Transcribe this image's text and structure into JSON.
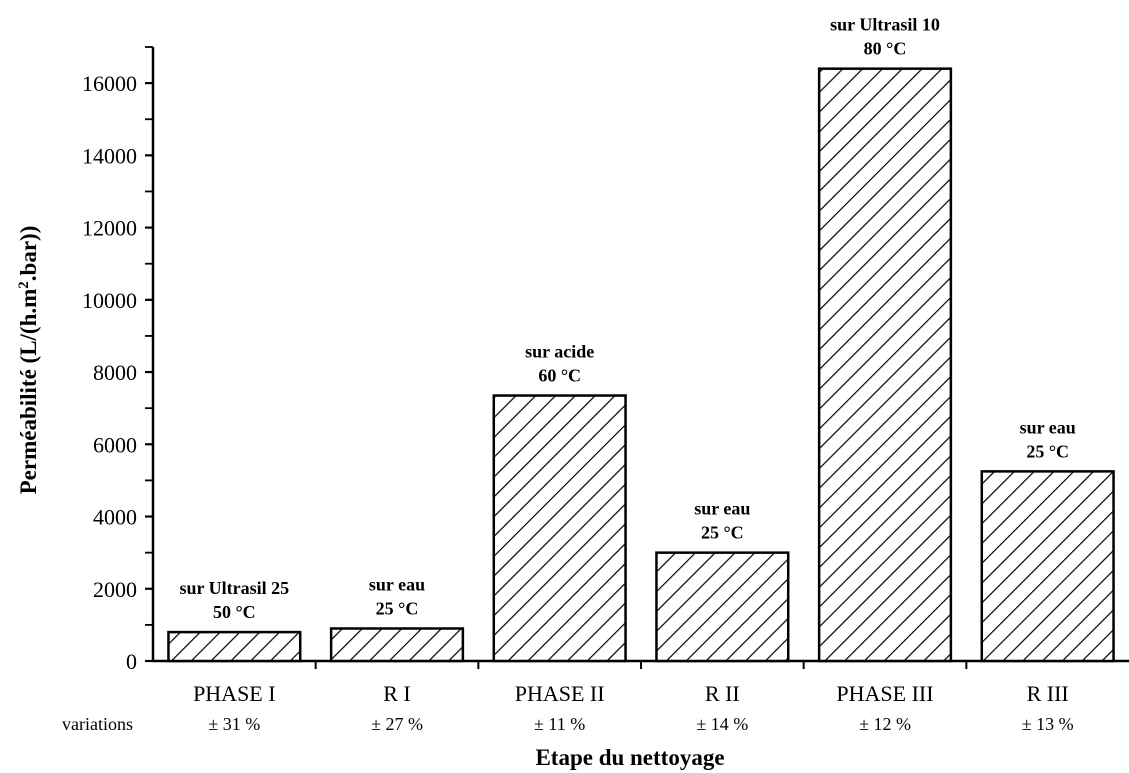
{
  "chart_data": {
    "type": "bar",
    "title": "",
    "xlabel": "Etape du nettoyage",
    "ylabel_prefix": "Perméabilité (L/(h.m",
    "ylabel_sup": "2",
    "ylabel_suffix": ".bar))",
    "ylim": [
      0,
      17000
    ],
    "yticks": [
      0,
      2000,
      4000,
      6000,
      8000,
      10000,
      12000,
      14000,
      16000
    ],
    "ytick_labels": [
      "0",
      "2000",
      "4000",
      "6000",
      "8000",
      "10000",
      "12000",
      "14000",
      "16000"
    ],
    "categories": [
      "PHASE I",
      "R I",
      "PHASE II",
      "R II",
      "PHASE III",
      "R III"
    ],
    "values": [
      800,
      900,
      7350,
      3000,
      16400,
      5250
    ],
    "bar_pattern": "diagonal-hatch",
    "annotations": [
      [
        "sur Ultrasil 25",
        "50 °C"
      ],
      [
        "sur eau",
        "25 °C"
      ],
      [
        "sur acide",
        "60 °C"
      ],
      [
        "sur eau",
        "25 °C"
      ],
      [
        "sur Ultrasil 10",
        "80 °C"
      ],
      [
        "sur eau",
        "25 °C"
      ]
    ],
    "variations_label": "variations",
    "variations": [
      "± 31 %",
      "± 27 %",
      "± 11 %",
      "± 14 %",
      "± 12 %",
      "± 13 %"
    ],
    "grid": false,
    "legend": "none"
  }
}
